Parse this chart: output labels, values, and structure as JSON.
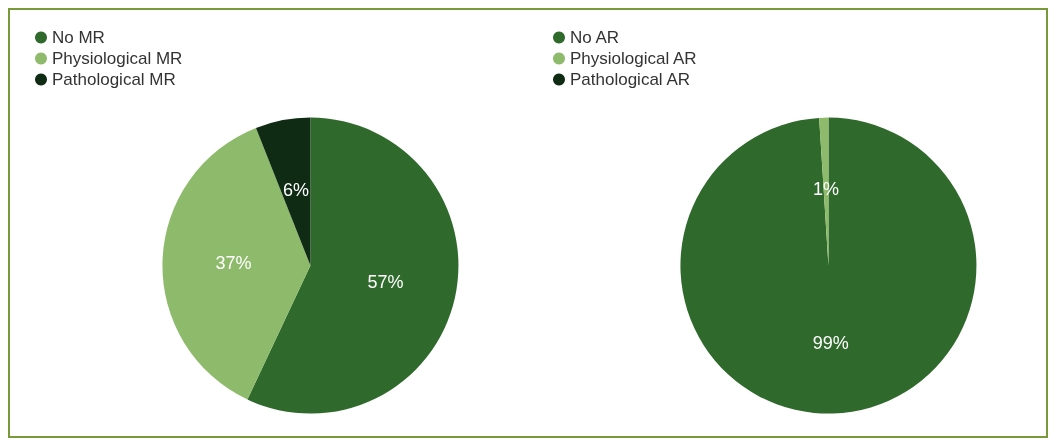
{
  "chart_data": [
    {
      "type": "pie",
      "categories": [
        "No MR",
        "Physiological MR",
        "Pathological MR"
      ],
      "values": [
        57,
        37,
        6
      ],
      "colors": [
        "#2f6a2c",
        "#8dbb6b",
        "#0f2b14"
      ],
      "value_labels": [
        "57%",
        "37%",
        "6%"
      ],
      "legend": "top left"
    },
    {
      "type": "pie",
      "categories": [
        "No AR",
        "Physiological AR",
        "Pathological AR"
      ],
      "values": [
        99,
        1,
        0
      ],
      "colors": [
        "#2f6a2c",
        "#8dbb6b",
        "#0f2b14"
      ],
      "value_labels": [
        "99%",
        "1%",
        null
      ],
      "legend": "top left"
    }
  ]
}
